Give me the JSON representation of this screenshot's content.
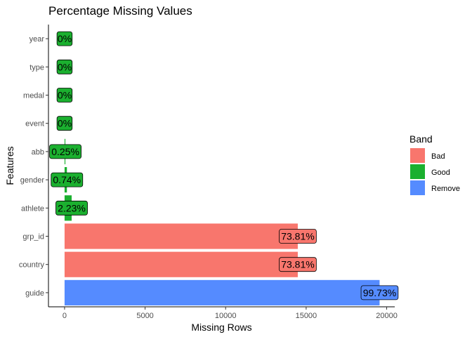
{
  "chart_data": {
    "type": "bar",
    "orientation": "horizontal",
    "title": "Percentage Missing Values",
    "xlabel": "Missing Rows",
    "ylabel": "Features",
    "xlim": [
      -1000,
      20500
    ],
    "xticks": [
      0,
      5000,
      10000,
      15000,
      20000
    ],
    "categories": [
      "year",
      "type",
      "medal",
      "event",
      "abb",
      "gender",
      "athlete",
      "grp_id",
      "country",
      "guide"
    ],
    "values": [
      0,
      0,
      0,
      0,
      50,
      145,
      440,
      14480,
      14480,
      19560
    ],
    "labels": [
      "0%",
      "0%",
      "0%",
      "0%",
      "0.25%",
      "0.74%",
      "2.23%",
      "73.81%",
      "73.81%",
      "99.73%"
    ],
    "band": [
      "Good",
      "Good",
      "Good",
      "Good",
      "Good",
      "Good",
      "Good",
      "Bad",
      "Bad",
      "Remove"
    ],
    "legend": {
      "title": "Band",
      "position": "right",
      "entries": [
        "Bad",
        "Good",
        "Remove"
      ]
    },
    "colors": {
      "Bad": "#F8766D",
      "Good": "#1BB02F",
      "Remove": "#558BFF"
    },
    "grid": false
  }
}
